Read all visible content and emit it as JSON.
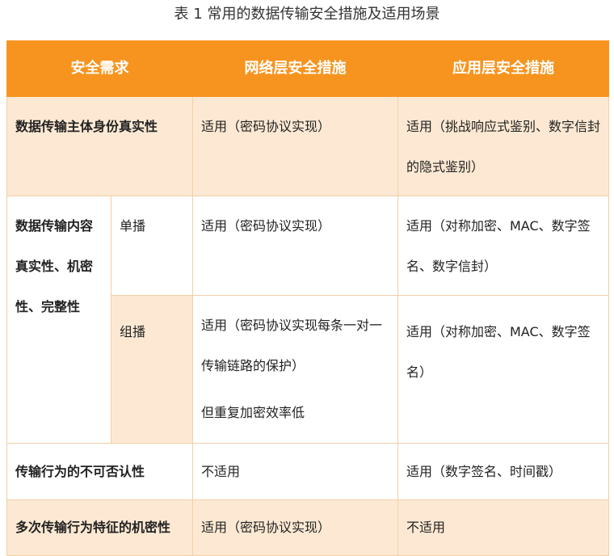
{
  "title": "表 1  常用的数据传输安全措施及适用场景",
  "colors": {
    "header_bg": "#f7941f",
    "row_highlight": "#fde9d3",
    "border": "#f3cfa5"
  },
  "headers": [
    "安全需求",
    "网络层安全措施",
    "应用层安全措施"
  ],
  "rows": {
    "r1": {
      "need": "数据传输主体身份真实性",
      "network": "适用（密码协议实现）",
      "app": "适用（挑战响应式鉴别、数字信封的隐式鉴别）"
    },
    "r2": {
      "need": "数据传输内容真实性、机密性、完整性",
      "sub": "单播",
      "network": "适用（密码协议实现）",
      "app": "适用（对称加密、MAC、数字签名、数字信封）"
    },
    "r3": {
      "sub": "组播",
      "network": "适用（密码协议实现每条一对一传输链路的保护）",
      "network_note": "但重复加密效率低",
      "app": "适用（对称加密、MAC、数字签名）"
    },
    "r4": {
      "need": "传输行为的不可否认性",
      "network": "不适用",
      "app": "适用（数字签名、时间戳）"
    },
    "r5": {
      "need": "多次传输行为特征的机密性",
      "network": "适用（密码协议实现）",
      "app": "不适用"
    }
  }
}
